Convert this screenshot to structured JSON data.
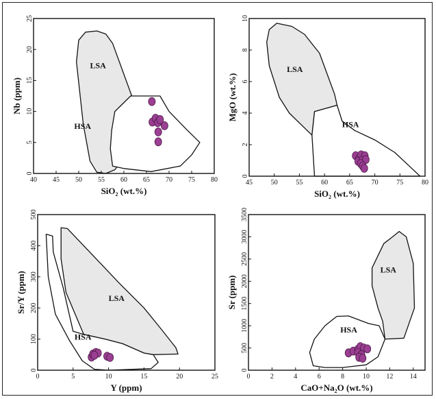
{
  "chart_data": [
    {
      "type": "scatter",
      "xlabel": "SiO2 (wt.%)",
      "xlabel_main": "SiO",
      "xlabel_sub": "2",
      "xlabel_rest": " (wt.%)",
      "ylabel": "Nb (ppm)",
      "xlim": [
        40,
        80
      ],
      "ylim": [
        0,
        25
      ],
      "xticks": [
        40,
        45,
        50,
        55,
        60,
        65,
        70,
        75,
        80
      ],
      "yticks": [
        0,
        5,
        10,
        15,
        20,
        25
      ],
      "regions": [
        {
          "label": "LSA",
          "fill": "#e8e8e8",
          "label_at": [
            52.5,
            17
          ],
          "outline": [
            [
              54,
              23
            ],
            [
              51.5,
              22.8
            ],
            [
              50,
              21.5
            ],
            [
              49.5,
              18
            ],
            [
              51,
              8
            ],
            [
              52.5,
              2
            ],
            [
              54,
              0.2
            ],
            [
              56,
              0
            ],
            [
              58,
              0.6
            ],
            [
              59.5,
              2
            ],
            [
              60,
              5
            ],
            [
              62,
              12
            ],
            [
              60,
              16
            ],
            [
              57.5,
              21
            ],
            [
              56,
              22.5
            ],
            [
              54,
              23
            ]
          ]
        },
        {
          "label": "HSA",
          "fill": "#ffffff",
          "label_at": [
            49,
            7.2
          ],
          "outline": [
            [
              58,
              10
            ],
            [
              61.5,
              12.5
            ],
            [
              68,
              12.5
            ],
            [
              70,
              10
            ],
            [
              74,
              7
            ],
            [
              76.8,
              5
            ],
            [
              75,
              3
            ],
            [
              72.5,
              1.2
            ],
            [
              66,
              0.3
            ],
            [
              60,
              0.8
            ],
            [
              57.5,
              1.2
            ],
            [
              57,
              4
            ],
            [
              57.3,
              7
            ],
            [
              58,
              10
            ]
          ]
        }
      ],
      "points": [
        [
          66.2,
          11.6
        ],
        [
          66.3,
          8.3
        ],
        [
          67,
          8.9
        ],
        [
          67.5,
          8.2
        ],
        [
          68,
          8.7
        ],
        [
          69,
          7.7
        ],
        [
          67.6,
          6.7
        ],
        [
          67.6,
          5.1
        ]
      ]
    },
    {
      "type": "scatter",
      "xlabel": "SiO2 (wt.%)",
      "xlabel_main": "SiO",
      "xlabel_sub": "2",
      "xlabel_rest": " (wt.%)",
      "ylabel": "MgO (wt.%)",
      "xlim": [
        45,
        80
      ],
      "ylim": [
        0,
        10
      ],
      "xticks": [
        45,
        50,
        55,
        60,
        65,
        70,
        75,
        80
      ],
      "yticks": [
        0,
        2,
        4,
        6,
        8,
        10
      ],
      "regions": [
        {
          "label": "LSA",
          "fill": "#e8e8e8",
          "label_at": [
            52.5,
            6.6
          ],
          "outline": [
            [
              50.5,
              9.7
            ],
            [
              49,
              9.3
            ],
            [
              48.5,
              8.5
            ],
            [
              49,
              7
            ],
            [
              51,
              5
            ],
            [
              53,
              4
            ],
            [
              57.5,
              2.6
            ],
            [
              58,
              4.1
            ],
            [
              62.5,
              4.5
            ],
            [
              62,
              5.2
            ],
            [
              59,
              7.8
            ],
            [
              56,
              9
            ],
            [
              53.5,
              9.5
            ],
            [
              50.5,
              9.7
            ]
          ]
        },
        {
          "label": "HSA",
          "fill": "#ffffff",
          "label_at": [
            63.5,
            3.1
          ],
          "outline": [
            [
              58,
              4.1
            ],
            [
              62.5,
              4.5
            ],
            [
              63.5,
              3.5
            ],
            [
              66,
              2.9
            ],
            [
              70,
              2.3
            ],
            [
              74,
              1.5
            ],
            [
              77,
              0.6
            ],
            [
              79,
              0
            ],
            [
              58,
              0
            ],
            [
              57.5,
              2.6
            ],
            [
              58,
              4.1
            ]
          ]
        }
      ],
      "points": [
        [
          66.2,
          1.3
        ],
        [
          66.8,
          1.1
        ],
        [
          67.3,
          1.35
        ],
        [
          68,
          1.3
        ],
        [
          66.7,
          0.95
        ],
        [
          67.5,
          1.0
        ],
        [
          68.2,
          1.05
        ],
        [
          67.2,
          0.8
        ],
        [
          67.6,
          0.65
        ],
        [
          67.9,
          0.5
        ]
      ]
    },
    {
      "type": "scatter",
      "xlabel": "Y (ppm)",
      "ylabel": "Sr/Y (ppm)",
      "xlim": [
        0,
        25
      ],
      "ylim": [
        0,
        500
      ],
      "xticks": [
        0,
        5,
        10,
        15,
        20,
        25
      ],
      "yticks": [
        0,
        100,
        200,
        300,
        400,
        500
      ],
      "regions": [
        {
          "label": "LSA",
          "fill": "#e8e8e8",
          "label_at": [
            10,
            222
          ],
          "outline": [
            [
              3.3,
              458
            ],
            [
              4.2,
              455
            ],
            [
              6.5,
              400
            ],
            [
              9,
              340
            ],
            [
              11.5,
              280
            ],
            [
              15,
              200
            ],
            [
              17.5,
              130
            ],
            [
              19.5,
              72
            ],
            [
              19.8,
              52
            ],
            [
              16.3,
              50
            ],
            [
              15,
              55
            ],
            [
              12,
              85
            ],
            [
              9.5,
              100
            ],
            [
              6.5,
              115
            ],
            [
              4,
              250
            ],
            [
              3.3,
              358
            ],
            [
              3.3,
              458
            ]
          ]
        },
        {
          "label": "HSA",
          "fill": "#ffffff",
          "label_at": [
            5.2,
            98
          ],
          "outline": [
            [
              1.2,
              437
            ],
            [
              2.1,
              431
            ],
            [
              2.2,
              380
            ],
            [
              3.6,
              265
            ],
            [
              5,
              125
            ],
            [
              6.5,
              115
            ],
            [
              9.5,
              100
            ],
            [
              12,
              85
            ],
            [
              15,
              55
            ],
            [
              16.3,
              50
            ],
            [
              17,
              25
            ],
            [
              16,
              5
            ],
            [
              10,
              0
            ],
            [
              8,
              3
            ],
            [
              6.3,
              30
            ],
            [
              4.5,
              95
            ],
            [
              2.5,
              180
            ],
            [
              1.5,
              300
            ],
            [
              1.2,
              437
            ]
          ]
        }
      ],
      "points": [
        [
          7.6,
          42
        ],
        [
          7.8,
          52
        ],
        [
          8.2,
          57
        ],
        [
          8.5,
          55
        ],
        [
          8.0,
          48
        ],
        [
          9.8,
          45
        ],
        [
          10.2,
          41
        ]
      ]
    },
    {
      "type": "scatter",
      "xlabel": "CaO+Na2O (wt.%)",
      "xlabel_main": "CaO+Na",
      "xlabel_sub": "2",
      "xlabel_rest": "O (wt.%)",
      "ylabel": "Sr (ppm)",
      "xlim": [
        0,
        15
      ],
      "ylim": [
        0,
        3500
      ],
      "xticks": [
        0,
        2,
        4,
        6,
        8,
        10,
        12,
        14
      ],
      "yticks": [
        0,
        500,
        1000,
        1500,
        2000,
        2500,
        3000,
        3500
      ],
      "regions": [
        {
          "label": "LSA",
          "fill": "#e8e8e8",
          "label_at": [
            11.2,
            2200
          ],
          "outline": [
            [
              12.8,
              3120
            ],
            [
              12,
              2950
            ],
            [
              11.5,
              2850
            ],
            [
              10.5,
              2300
            ],
            [
              10.5,
              1900
            ],
            [
              11,
              1400
            ],
            [
              11.4,
              1100
            ],
            [
              11.6,
              700
            ],
            [
              13.2,
              720
            ],
            [
              14.1,
              1400
            ],
            [
              14,
              2400
            ],
            [
              13.4,
              3000
            ],
            [
              12.8,
              3120
            ]
          ]
        },
        {
          "label": "HSA",
          "fill": "#ffffff",
          "label_at": [
            7.8,
            850
          ],
          "outline": [
            [
              7.5,
              1210
            ],
            [
              8.5,
              1220
            ],
            [
              10.2,
              1050
            ],
            [
              11.1,
              1000
            ],
            [
              11.6,
              700
            ],
            [
              11,
              300
            ],
            [
              10,
              120
            ],
            [
              8,
              60
            ],
            [
              6.5,
              60
            ],
            [
              5.5,
              100
            ],
            [
              5.2,
              400
            ],
            [
              5.6,
              700
            ],
            [
              6.5,
              1000
            ],
            [
              7.5,
              1210
            ]
          ]
        }
      ],
      "points": [
        [
          8.5,
          390
        ],
        [
          8.9,
          430
        ],
        [
          9.3,
          470
        ],
        [
          9.5,
          530
        ],
        [
          9.8,
          500
        ],
        [
          10.1,
          480
        ],
        [
          9.3,
          400
        ],
        [
          9.6,
          350
        ],
        [
          9.4,
          290
        ],
        [
          9.7,
          270
        ]
      ]
    }
  ]
}
